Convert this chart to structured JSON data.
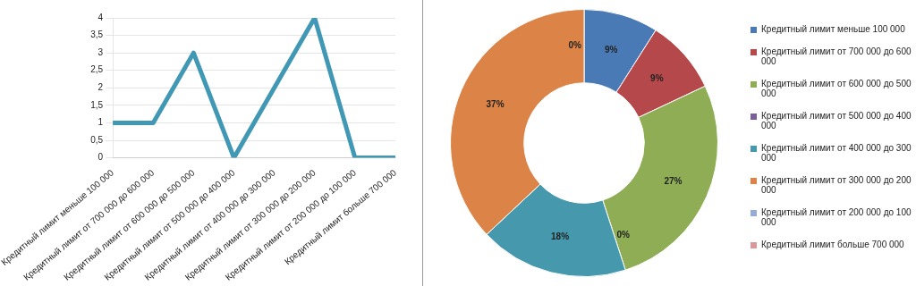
{
  "chart_data": [
    {
      "type": "line",
      "categories": [
        "Кредитный лимит меньше 100 000",
        "Кредитный лимит от 700 000 до 600 000",
        "Кредитный лимит от 600 000 до 500 000",
        "Кредитный лимит от 500 000 до 400 000",
        "Кредитный лимит от 400 000 до 300 000",
        "Кредитный лимит от 300 000 до 200 000",
        "Кредитный лимит от 200 000 до 100 000",
        "Кредитный лимит больше 700 000"
      ],
      "series": [
        {
          "color": "#4198b5",
          "values": [
            1,
            1,
            3,
            0,
            2,
            4,
            0,
            0
          ]
        }
      ],
      "ylim": [
        0,
        4
      ],
      "yticks": [
        0,
        {
          "value": 0.5,
          "label": "0,5"
        },
        1,
        {
          "value": 1.5,
          "label": "1,5"
        },
        2,
        {
          "value": 2.5,
          "label": "2,5"
        },
        3,
        {
          "value": 3.5,
          "label": "3,5"
        },
        4
      ],
      "grid": "y"
    },
    {
      "type": "donut",
      "categories": [
        "Кредитный лимит меньше 100 000",
        "Кредитный лимит от 700 000 до 600 000",
        "Кредитный лимит от 600 000 до 500 000",
        "Кредитный лимит от 500 000 до 400 000",
        "Кредитный лимит от 400 000 до 300 000",
        "Кредитный лимит от 300 000 до 200 000",
        "Кредитный лимит от 200 000 до 100 000",
        "Кредитный лимит больше 700 000"
      ],
      "values": [
        9,
        9,
        27,
        0,
        18,
        37,
        0,
        0
      ],
      "value_labels": [
        "9%",
        "9%",
        "27%",
        "0%",
        "18%",
        "37%",
        null,
        "0%"
      ],
      "colors": [
        "#4a7ab5",
        "#b5484a",
        "#8fad55",
        "#7a5f9a",
        "#4699ad",
        "#dc8447",
        "#95acd6",
        "#d9999a"
      ],
      "legend": "right"
    }
  ]
}
